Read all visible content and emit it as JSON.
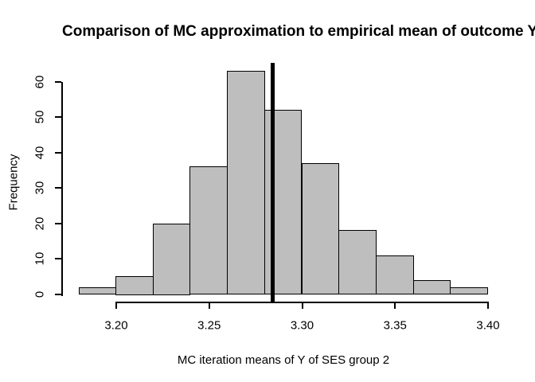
{
  "chart_data": {
    "type": "bar",
    "subtype": "histogram",
    "title": "Comparison of MC approximation to empirical mean of outcome Y",
    "xlabel": "MC iteration means of Y of SES group 2",
    "ylabel": "Frequency",
    "bin_edges": [
      3.18,
      3.2,
      3.22,
      3.24,
      3.26,
      3.28,
      3.3,
      3.32,
      3.34,
      3.36,
      3.38,
      3.4
    ],
    "counts": [
      2,
      5,
      20,
      36,
      63,
      52,
      37,
      18,
      11,
      4,
      2
    ],
    "x_tick_labels": [
      "3.20",
      "3.25",
      "3.30",
      "3.35",
      "3.40"
    ],
    "x_tick_values": [
      3.2,
      3.25,
      3.3,
      3.35,
      3.4
    ],
    "y_tick_labels": [
      "0",
      "10",
      "20",
      "30",
      "40",
      "50",
      "60"
    ],
    "y_tick_values": [
      0,
      10,
      20,
      30,
      40,
      50,
      60
    ],
    "xlim": [
      3.18,
      3.4
    ],
    "ylim": [
      0,
      63
    ],
    "vline_x": 3.284,
    "grid": false,
    "legend_position": "none",
    "bar_fill": "#BEBEBE",
    "bar_border": "#000000",
    "vline_color": "#000000",
    "background": "#FFFFFF",
    "text_color": "#000000"
  }
}
